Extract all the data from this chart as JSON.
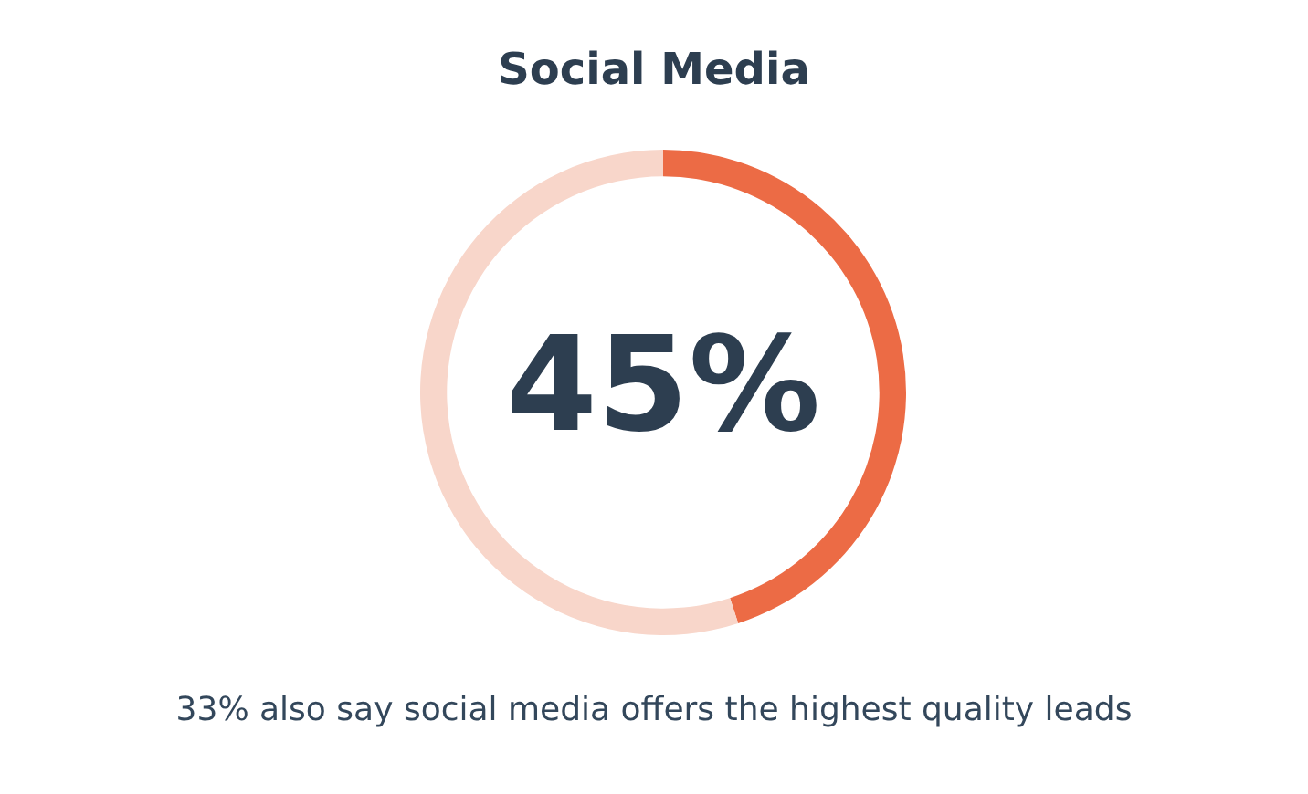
{
  "chart_data": {
    "type": "donut",
    "title": "Social Media",
    "categories": [
      null,
      null
    ],
    "values": [
      45,
      55
    ],
    "colors": [
      "#ec6b45",
      "#f8d6ca"
    ],
    "value_labels": [
      "45%",
      null
    ],
    "annotations": [
      "33% also say social media offers the highest quality leads"
    ],
    "legend": false
  }
}
